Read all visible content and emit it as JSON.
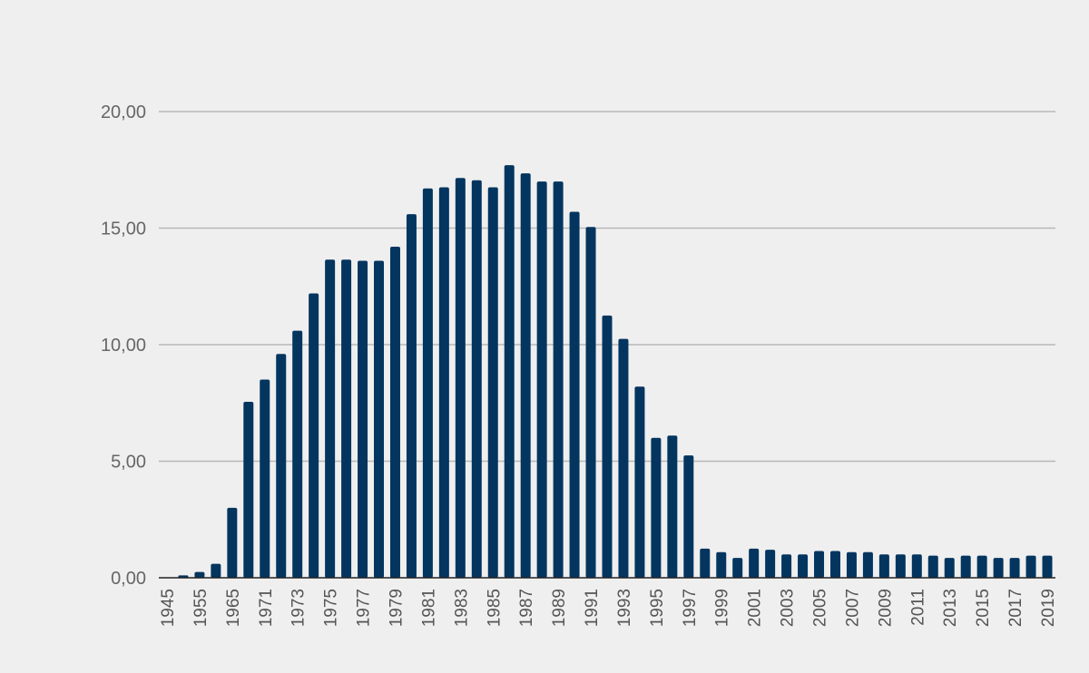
{
  "chart_data": {
    "type": "bar",
    "title": "",
    "xlabel": "",
    "ylabel": "",
    "ylim": [
      0,
      20
    ],
    "yticks": [
      "0,00",
      "5,00",
      "10,00",
      "15,00",
      "20,00"
    ],
    "grid": true,
    "legend": "none",
    "bar_color": "#03355f",
    "categories": [
      "1945",
      "1950",
      "1955",
      "1960",
      "1965",
      "1970",
      "1971",
      "1972",
      "1973",
      "1974",
      "1975",
      "1976",
      "1977",
      "1978",
      "1979",
      "1980",
      "1981",
      "1982",
      "1983",
      "1984",
      "1985",
      "1986",
      "1987",
      "1988",
      "1989",
      "1990",
      "1991",
      "1992",
      "1993",
      "1994",
      "1995",
      "1996",
      "1997",
      "1998",
      "1999",
      "2000",
      "2001",
      "2002",
      "2003",
      "2004",
      "2005",
      "2006",
      "2007",
      "2008",
      "2009",
      "2010",
      "2011",
      "2012",
      "2013",
      "2014",
      "2015",
      "2016",
      "2017",
      "2018",
      "2019"
    ],
    "values": [
      0.0,
      0.1,
      0.25,
      0.6,
      3.0,
      7.55,
      8.5,
      9.6,
      10.6,
      12.2,
      13.65,
      13.65,
      13.6,
      13.6,
      14.2,
      15.6,
      16.7,
      16.75,
      17.15,
      17.05,
      16.75,
      17.7,
      17.35,
      17.0,
      17.0,
      15.7,
      15.05,
      11.25,
      10.25,
      8.2,
      6.0,
      6.1,
      5.25,
      1.25,
      1.1,
      0.85,
      1.25,
      1.2,
      1.0,
      1.0,
      1.15,
      1.15,
      1.1,
      1.1,
      1.0,
      1.0,
      1.0,
      0.95,
      0.85,
      0.95,
      0.95,
      0.85,
      0.85,
      0.95,
      0.95
    ],
    "xtick_labels": [
      "1945",
      "1955",
      "1965",
      "1971",
      "1973",
      "1975",
      "1977",
      "1979",
      "1981",
      "1983",
      "1985",
      "1987",
      "1989",
      "1991",
      "1993",
      "1995",
      "1997",
      "1999",
      "2001",
      "2003",
      "2005",
      "2007",
      "2009",
      "2011",
      "2013",
      "2015",
      "2017",
      "2019"
    ]
  }
}
